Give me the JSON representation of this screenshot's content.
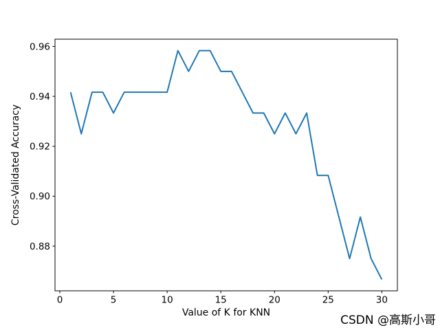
{
  "chart_data": {
    "type": "line",
    "xlabel": "Value of K for KNN",
    "ylabel": "Cross-Validated Accuracy",
    "x": [
      1,
      2,
      3,
      4,
      5,
      6,
      7,
      8,
      9,
      10,
      11,
      12,
      13,
      14,
      15,
      16,
      17,
      18,
      19,
      20,
      21,
      22,
      23,
      24,
      25,
      26,
      27,
      28,
      29,
      30
    ],
    "series": [
      {
        "name": "cross_validated_accuracy",
        "color": "#1f77b4",
        "values": [
          0.94167,
          0.925,
          0.94167,
          0.94167,
          0.93333,
          0.94167,
          0.94167,
          0.94167,
          0.94167,
          0.94167,
          0.95833,
          0.95,
          0.95833,
          0.95833,
          0.95,
          0.95,
          0.94167,
          0.93333,
          0.93333,
          0.925,
          0.93333,
          0.925,
          0.93333,
          0.90833,
          0.90833,
          0.89167,
          0.875,
          0.89167,
          0.875,
          0.86667
        ]
      }
    ],
    "xlim": [
      -0.45,
      31.45
    ],
    "ylim": [
      0.8621,
      0.9629
    ],
    "xticks": [
      0,
      5,
      10,
      15,
      20,
      25,
      30
    ],
    "xtick_labels": [
      "0",
      "5",
      "10",
      "15",
      "20",
      "25",
      "30"
    ],
    "yticks": [
      0.88,
      0.9,
      0.92,
      0.94,
      0.96
    ],
    "ytick_labels": [
      "0.88",
      "0.90",
      "0.92",
      "0.94",
      "0.96"
    ],
    "grid": false,
    "legend_position": "none"
  },
  "watermark": {
    "text": "CSDN @高斯小哥",
    "color": "#c6c6c6"
  },
  "frame": {
    "background": "#ffffff",
    "axis_color": "#000000"
  }
}
